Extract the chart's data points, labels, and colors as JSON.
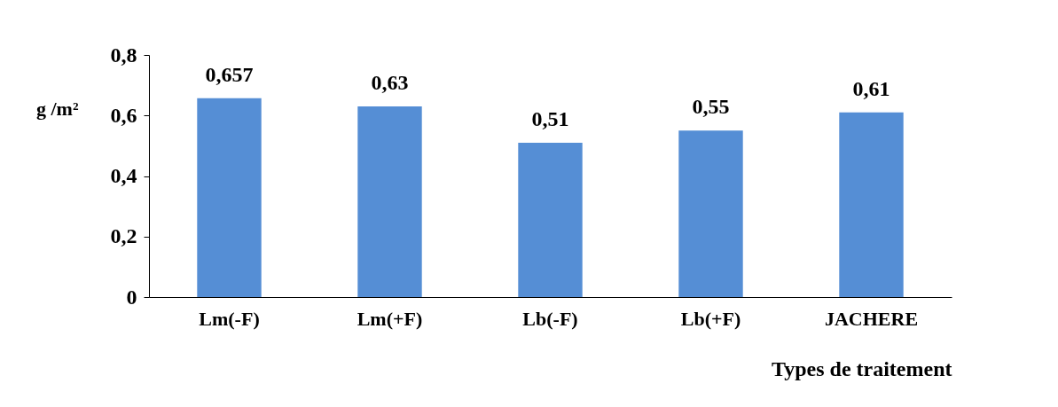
{
  "chart_data": {
    "type": "bar",
    "categories": [
      "Lm(-F)",
      "Lm(+F)",
      "Lb(-F)",
      "Lb(+F)",
      "JACHERE"
    ],
    "values": [
      0.657,
      0.63,
      0.51,
      0.55,
      0.61
    ],
    "value_labels": [
      "0,657",
      "0,63",
      "0,51",
      "0,55",
      "0,61"
    ],
    "color": "#558ed5",
    "ylim": [
      0,
      0.8
    ],
    "yticks": [
      0,
      {
        "value": 0.2,
        "label": "0,2"
      },
      {
        "value": 0.4,
        "label": "0,4"
      },
      {
        "value": 0.6,
        "label": "0,6"
      },
      {
        "value": 0.8,
        "label": "0,8"
      }
    ],
    "ylabel": "g /m²",
    "xlabel": "Types de traitement",
    "grid": false
  }
}
